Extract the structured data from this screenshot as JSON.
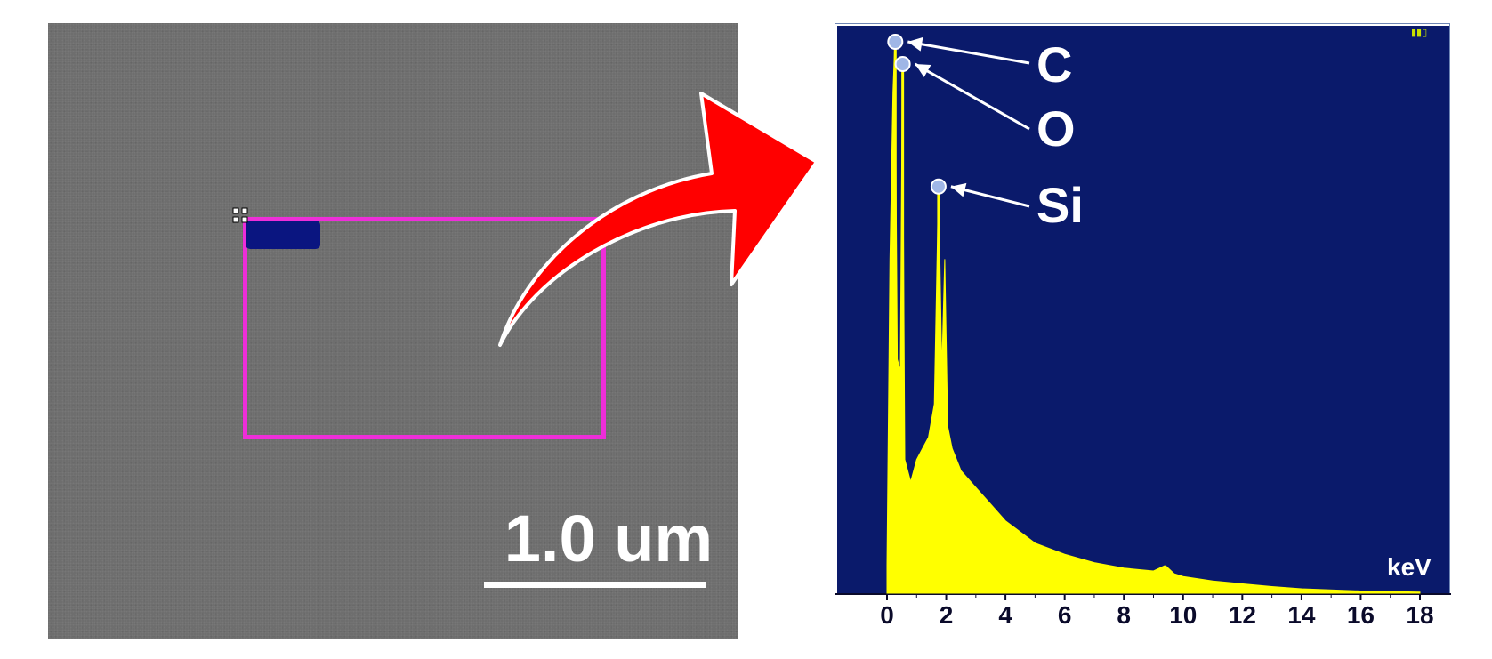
{
  "sem_image": {
    "scale_bar_label": "1.0 um",
    "colors": {
      "background": "#6e6e6e",
      "roi_outline": "#ee2ed9",
      "roi_tag": "#0a1580",
      "scale": "#ffffff"
    }
  },
  "arrow": {
    "color": "#ff0000"
  },
  "chart_data": {
    "type": "area",
    "title": "",
    "xlabel": "keV",
    "ylabel": "",
    "xlim": [
      0,
      18
    ],
    "x_ticks": [
      "0",
      "2",
      "4",
      "6",
      "8",
      "10",
      "12",
      "14",
      "16",
      "18"
    ],
    "grid": false,
    "colors": {
      "plot_background": "#0a1a6b",
      "spectrum": "#ffff00",
      "axis_band": "#ffffff"
    },
    "series": [
      {
        "x": [
          0.0,
          0.1,
          0.2,
          0.27,
          0.35,
          0.45,
          0.52,
          0.6,
          0.8,
          1.0,
          1.2,
          1.4,
          1.6,
          1.74,
          1.85,
          1.95,
          2.05,
          2.2,
          2.5,
          3.0,
          3.5,
          4.0,
          4.5,
          5.0,
          6.0,
          7.0,
          8.0,
          9.0,
          9.4,
          9.7,
          10.0,
          11.0,
          12.0,
          13.0,
          14.0,
          16.0,
          18.0
        ],
        "y": [
          0.05,
          0.6,
          0.9,
          1.0,
          0.42,
          0.4,
          0.96,
          0.24,
          0.2,
          0.24,
          0.26,
          0.28,
          0.34,
          0.74,
          0.4,
          0.6,
          0.3,
          0.26,
          0.22,
          0.19,
          0.16,
          0.13,
          0.11,
          0.09,
          0.07,
          0.055,
          0.045,
          0.04,
          0.05,
          0.035,
          0.03,
          0.022,
          0.017,
          0.012,
          0.008,
          0.004,
          0.002
        ]
      }
    ],
    "peaks": [
      {
        "label": "C",
        "x": 0.28,
        "y": 1.0
      },
      {
        "label": "O",
        "x": 0.53,
        "y": 0.96
      },
      {
        "label": "Si",
        "x": 1.74,
        "y": 0.74
      }
    ]
  }
}
